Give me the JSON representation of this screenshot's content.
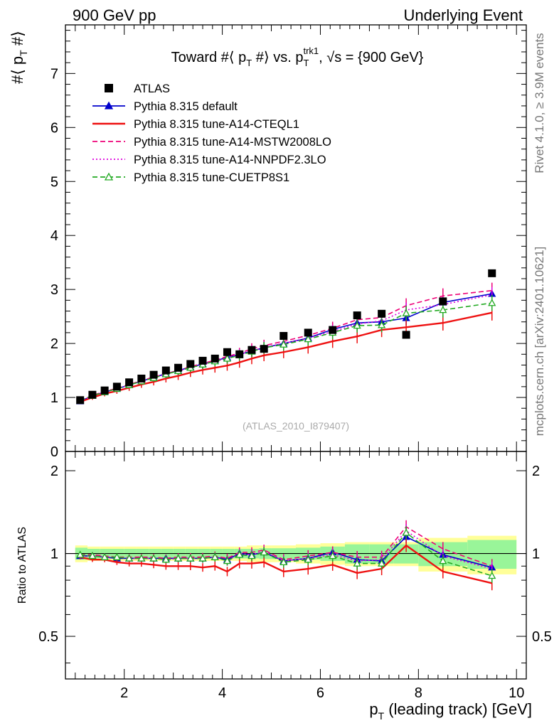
{
  "header": {
    "left": "900 GeV pp",
    "right": "Underlying Event"
  },
  "side": {
    "rivet": "Rivet 4.1.0, ≥ 3.9M events",
    "mcplots": "mcplots.cern.ch [arXiv:2401.10621]"
  },
  "chart_data": [
    {
      "type": "scatter",
      "panel": "main",
      "title": "Toward #⟨ p_T #⟩ vs. p_T^trk1, √s = {900 GeV}",
      "title_parts": {
        "main1": "Toward #⟨ p",
        "sub1": "T",
        "main2": " #⟩ vs. p",
        "sub2": "T",
        "sup2": "trk1",
        "main3": ", √s = {900 GeV}"
      },
      "ylabel": "#⟨ p_T #⟩",
      "ylabel_parts": {
        "main1": "#⟨ p",
        "sub": "T",
        "main2": " #⟩"
      },
      "analysis_tag": "(ATLAS_2010_I879407)",
      "xlim": [
        0.8,
        10.2
      ],
      "ylim": [
        0,
        7.9
      ],
      "yticks": [
        0,
        1,
        2,
        3,
        4,
        5,
        6,
        7
      ],
      "ytick_labels": [
        "0",
        "1",
        "2",
        "3",
        "4",
        "5",
        "6",
        "7"
      ],
      "x": [
        1.1,
        1.35,
        1.6,
        1.85,
        2.1,
        2.35,
        2.6,
        2.85,
        3.1,
        3.35,
        3.6,
        3.85,
        4.1,
        4.35,
        4.6,
        4.85,
        5.25,
        5.75,
        6.25,
        6.75,
        7.25,
        7.75,
        8.5,
        9.5
      ],
      "legend": [
        {
          "key": "atlas",
          "label": "ATLAS",
          "color": "#000000",
          "style": "square"
        },
        {
          "key": "default",
          "label": "Pythia 8.315 default",
          "color": "#0000cc",
          "style": "solid-triangle"
        },
        {
          "key": "cteql1",
          "label": "Pythia 8.315 tune-A14-CTEQL1",
          "color": "#ee1111",
          "style": "solid"
        },
        {
          "key": "mstw",
          "label": "Pythia 8.315 tune-A14-MSTW2008LO",
          "color": "#ee0077",
          "style": "dashed"
        },
        {
          "key": "nnpdf",
          "label": "Pythia 8.315 tune-A14-NNPDF2.3LO",
          "color": "#dd00dd",
          "style": "dotted"
        },
        {
          "key": "cuetp",
          "label": "Pythia 8.315 tune-CUETP8S1",
          "color": "#22aa22",
          "style": "dashed-open-triangle"
        }
      ],
      "series": [
        {
          "name": "ATLAS",
          "values": [
            0.95,
            1.05,
            1.13,
            1.2,
            1.28,
            1.35,
            1.42,
            1.5,
            1.55,
            1.62,
            1.68,
            1.72,
            1.84,
            1.8,
            1.88,
            1.9,
            2.14,
            2.2,
            2.25,
            2.52,
            2.55,
            2.16,
            2.78,
            3.3
          ]
        },
        {
          "name": "Pythia 8.315 default",
          "values": [
            0.93,
            1.03,
            1.1,
            1.16,
            1.23,
            1.3,
            1.37,
            1.44,
            1.5,
            1.56,
            1.62,
            1.68,
            1.74,
            1.8,
            1.86,
            1.92,
            2.0,
            2.1,
            2.26,
            2.38,
            2.4,
            2.47,
            2.76,
            2.92
          ]
        },
        {
          "name": "Pythia 8.315 tune-A14-CTEQL1",
          "values": [
            0.92,
            1.0,
            1.07,
            1.12,
            1.18,
            1.24,
            1.29,
            1.35,
            1.4,
            1.46,
            1.51,
            1.55,
            1.59,
            1.65,
            1.72,
            1.78,
            1.84,
            1.93,
            2.04,
            2.13,
            2.25,
            2.3,
            2.38,
            2.57
          ]
        },
        {
          "name": "Pythia 8.315 tune-A14-MSTW2008LO",
          "values": [
            0.94,
            1.04,
            1.11,
            1.17,
            1.24,
            1.31,
            1.38,
            1.44,
            1.5,
            1.57,
            1.63,
            1.69,
            1.76,
            1.82,
            1.9,
            1.96,
            2.04,
            2.15,
            2.28,
            2.44,
            2.48,
            2.7,
            2.88,
            2.98
          ]
        },
        {
          "name": "Pythia 8.315 tune-A14-NNPDF2.3LO",
          "values": [
            0.93,
            1.03,
            1.1,
            1.16,
            1.23,
            1.3,
            1.36,
            1.43,
            1.49,
            1.55,
            1.61,
            1.67,
            1.73,
            1.8,
            1.86,
            1.93,
            2.0,
            2.1,
            2.22,
            2.36,
            2.42,
            2.62,
            2.72,
            2.9
          ]
        },
        {
          "name": "Pythia 8.315 tune-CUETP8S1",
          "values": [
            0.94,
            1.03,
            1.1,
            1.16,
            1.23,
            1.3,
            1.36,
            1.43,
            1.49,
            1.55,
            1.61,
            1.67,
            1.72,
            1.78,
            1.85,
            1.92,
            1.98,
            2.08,
            2.2,
            2.33,
            2.34,
            2.56,
            2.62,
            2.75
          ]
        }
      ]
    },
    {
      "type": "line",
      "panel": "ratio",
      "ylabel": "Ratio to ATLAS",
      "xlabel": "p_T (leading track) [GeV]",
      "xlabel_parts": {
        "main1": "p",
        "sub": "T",
        "main2": " (leading track) [GeV]"
      },
      "xlim": [
        0.8,
        10.2
      ],
      "ylim": [
        0.35,
        2.35
      ],
      "xticks": [
        2,
        4,
        6,
        8,
        10
      ],
      "xtick_labels": [
        "2",
        "4",
        "6",
        "8",
        "10"
      ],
      "yticks": [
        0.5,
        1,
        2
      ],
      "ytick_labels": [
        "0.5",
        "1",
        "2"
      ],
      "x": [
        1.1,
        1.35,
        1.6,
        1.85,
        2.1,
        2.35,
        2.6,
        2.85,
        3.1,
        3.35,
        3.6,
        3.85,
        4.1,
        4.35,
        4.6,
        4.85,
        5.25,
        5.75,
        6.25,
        6.75,
        7.25,
        7.75,
        8.5,
        9.5
      ],
      "bins": [
        [
          1.0,
          1.25
        ],
        [
          1.25,
          1.5
        ],
        [
          1.5,
          1.75
        ],
        [
          1.75,
          2.0
        ],
        [
          2.0,
          2.25
        ],
        [
          2.25,
          2.5
        ],
        [
          2.5,
          2.75
        ],
        [
          2.75,
          3.0
        ],
        [
          3.0,
          3.25
        ],
        [
          3.25,
          3.5
        ],
        [
          3.5,
          3.75
        ],
        [
          3.75,
          4.0
        ],
        [
          4.0,
          4.25
        ],
        [
          4.25,
          4.5
        ],
        [
          4.5,
          4.75
        ],
        [
          4.75,
          5.0
        ],
        [
          5.0,
          5.5
        ],
        [
          5.5,
          6.0
        ],
        [
          6.0,
          6.5
        ],
        [
          6.5,
          7.0
        ],
        [
          7.0,
          7.5
        ],
        [
          7.5,
          8.0
        ],
        [
          8.0,
          9.0
        ],
        [
          9.0,
          10.0
        ]
      ],
      "band_stat": [
        0.05,
        0.04,
        0.04,
        0.04,
        0.04,
        0.04,
        0.04,
        0.04,
        0.04,
        0.04,
        0.04,
        0.04,
        0.04,
        0.04,
        0.04,
        0.045,
        0.045,
        0.05,
        0.06,
        0.08,
        0.08,
        0.08,
        0.1,
        0.12
      ],
      "band_total": [
        0.07,
        0.06,
        0.06,
        0.06,
        0.06,
        0.06,
        0.06,
        0.06,
        0.06,
        0.06,
        0.06,
        0.06,
        0.06,
        0.06,
        0.07,
        0.07,
        0.07,
        0.08,
        0.09,
        0.1,
        0.1,
        0.1,
        0.14,
        0.16
      ],
      "series": [
        {
          "name": "Pythia 8.315 default",
          "values": [
            0.98,
            0.98,
            0.97,
            0.96,
            0.96,
            0.96,
            0.96,
            0.96,
            0.96,
            0.96,
            0.96,
            0.97,
            0.95,
            1.0,
            0.99,
            1.01,
            0.94,
            0.96,
            1.01,
            0.95,
            0.94,
            1.15,
            0.99,
            0.89
          ]
        },
        {
          "name": "Pythia 8.315 tune-A14-CTEQL1",
          "values": [
            0.97,
            0.95,
            0.95,
            0.93,
            0.92,
            0.92,
            0.91,
            0.9,
            0.9,
            0.9,
            0.89,
            0.9,
            0.86,
            0.92,
            0.92,
            0.93,
            0.86,
            0.88,
            0.91,
            0.85,
            0.88,
            1.07,
            0.86,
            0.78
          ]
        },
        {
          "name": "Pythia 8.315 tune-A14-MSTW2008LO",
          "values": [
            0.99,
            0.99,
            0.98,
            0.97,
            0.97,
            0.97,
            0.97,
            0.96,
            0.97,
            0.97,
            0.97,
            0.98,
            0.96,
            1.01,
            1.01,
            1.03,
            0.95,
            0.98,
            1.01,
            0.97,
            0.97,
            1.25,
            1.04,
            0.9
          ]
        },
        {
          "name": "Pythia 8.315 tune-A14-NNPDF2.3LO",
          "values": [
            0.98,
            0.98,
            0.97,
            0.97,
            0.96,
            0.96,
            0.96,
            0.95,
            0.96,
            0.96,
            0.96,
            0.97,
            0.94,
            1.0,
            0.99,
            1.02,
            0.94,
            0.96,
            0.99,
            0.94,
            0.95,
            1.21,
            0.98,
            0.88
          ]
        },
        {
          "name": "Pythia 8.315 tune-CUETP8S1",
          "values": [
            0.99,
            0.98,
            0.97,
            0.97,
            0.96,
            0.96,
            0.96,
            0.95,
            0.96,
            0.96,
            0.96,
            0.97,
            0.94,
            0.99,
            0.98,
            1.01,
            0.93,
            0.95,
            0.98,
            0.92,
            0.92,
            1.19,
            0.94,
            0.83
          ]
        }
      ]
    }
  ]
}
